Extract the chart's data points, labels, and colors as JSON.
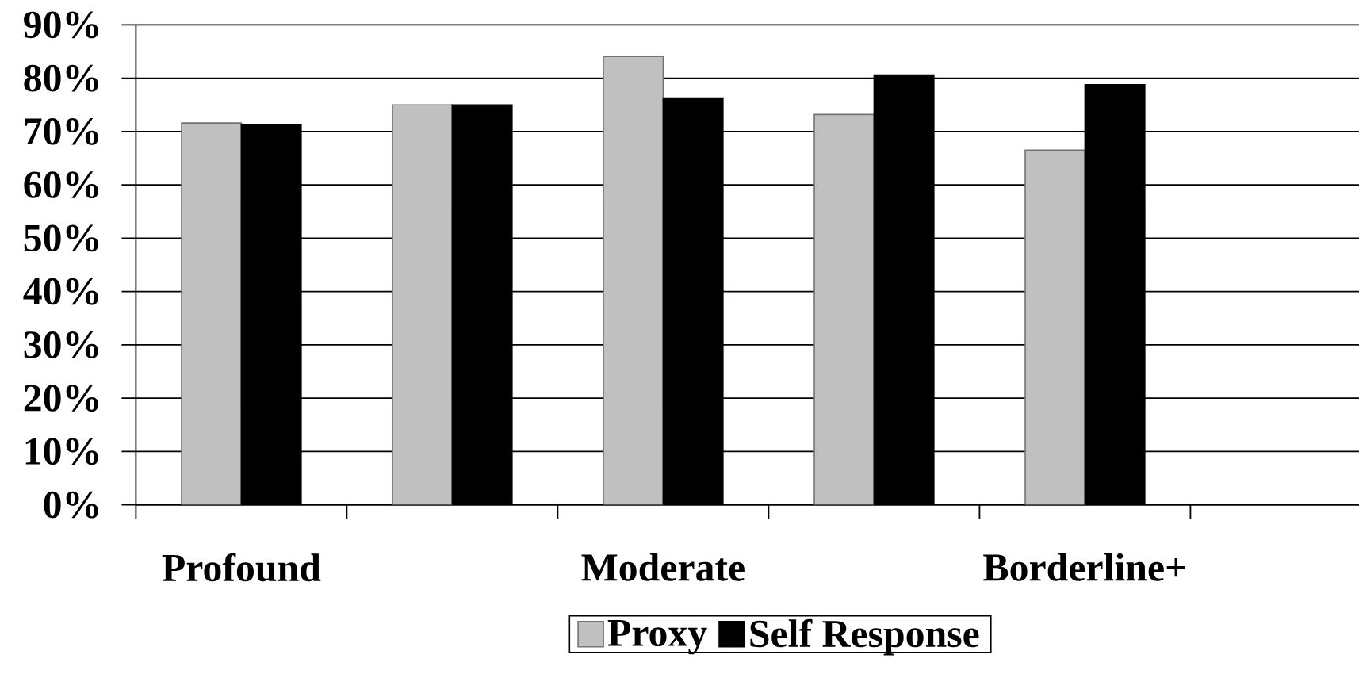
{
  "chart_data": {
    "type": "bar",
    "categories": [
      "Profound",
      null,
      "Moderate",
      null,
      "Borderline+",
      null
    ],
    "series": [
      {
        "name": "Proxy",
        "color": "#c0c0c0",
        "values": [
          71.6,
          75.0,
          84.1,
          73.2,
          66.5,
          null
        ]
      },
      {
        "name": "Self Response",
        "color": "#000000",
        "values": [
          71.3,
          75.0,
          76.3,
          80.6,
          78.8,
          null
        ]
      }
    ],
    "ylim": [
      0,
      90
    ],
    "yticks": [
      {
        "value": 0,
        "label": "0%"
      },
      {
        "value": 10,
        "label": "10%"
      },
      {
        "value": 20,
        "label": "20%"
      },
      {
        "value": 30,
        "label": "30%"
      },
      {
        "value": 40,
        "label": "40%"
      },
      {
        "value": 50,
        "label": "50%"
      },
      {
        "value": 60,
        "label": "60%"
      },
      {
        "value": 70,
        "label": "70%"
      },
      {
        "value": 80,
        "label": "80%"
      },
      {
        "value": 90,
        "label": "90%"
      }
    ],
    "grid": "y",
    "legend": "bottom"
  }
}
